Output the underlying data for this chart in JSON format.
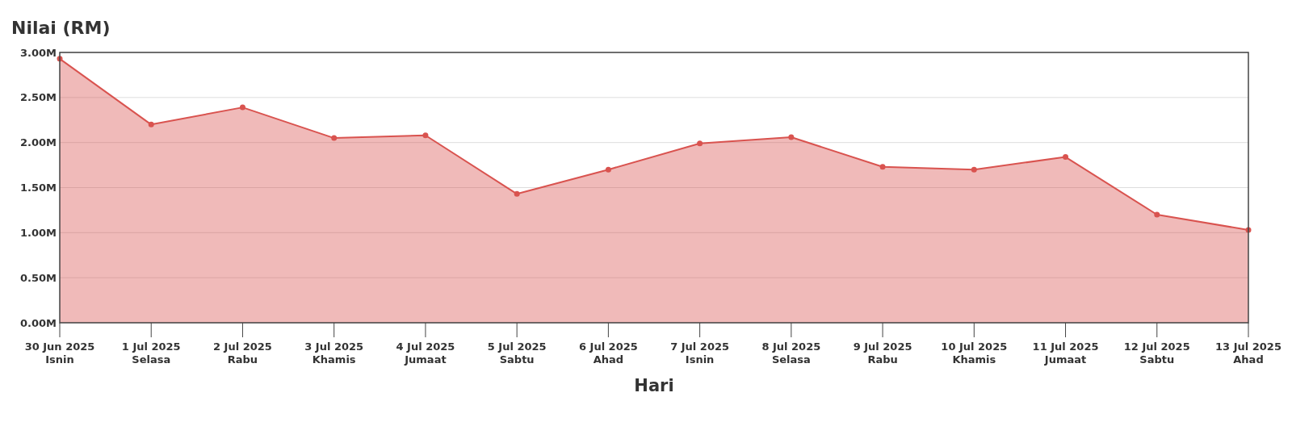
{
  "chart_data": {
    "type": "area",
    "title": "Nilai (RM)",
    "xlabel": "Hari",
    "categories": [
      "30 Jun 2025\nIsnin",
      "1 Jul 2025\nSelasa",
      "2 Jul 2025\nRabu",
      "3 Jul 2025\nKhamis",
      "4 Jul 2025\nJumaat",
      "5 Jul 2025\nSabtu",
      "6 Jul 2025\nAhad",
      "7 Jul 2025\nIsnin",
      "8 Jul 2025\nSelasa",
      "9 Jul 2025\nRabu",
      "10 Jul 2025\nKhamis",
      "11 Jul 2025\nJumaat",
      "12 Jul 2025\nSabtu",
      "13 Jul 2025\nAhad"
    ],
    "series": [
      {
        "color": "#d9534f",
        "values": [
          2.93,
          2.2,
          2.39,
          2.05,
          2.08,
          1.43,
          1.7,
          1.99,
          2.06,
          1.73,
          1.7,
          1.84,
          1.2,
          1.03
        ]
      }
    ],
    "ylim": [
      0,
      3
    ],
    "yticks": [
      {
        "value": 0,
        "label": "0.00M"
      },
      {
        "value": 0.5,
        "label": "0.50M"
      },
      {
        "value": 1,
        "label": "1.00M"
      },
      {
        "value": 1.5,
        "label": "1.50M"
      },
      {
        "value": 2,
        "label": "2.00M"
      },
      {
        "value": 2.5,
        "label": "2.50M"
      },
      {
        "value": 3,
        "label": "3.00M"
      }
    ],
    "grid": "y",
    "marker": "circle"
  }
}
